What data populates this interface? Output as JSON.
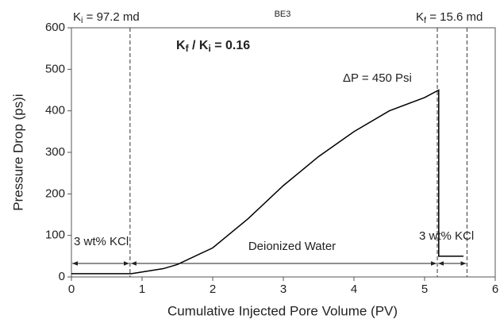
{
  "chart_data": {
    "type": "line",
    "title": "BE3",
    "x_label": "Cumulative Injected Pore Volume (PV)",
    "y_label": "Pressure Drop (ps)i",
    "xlim": [
      0,
      6
    ],
    "xticks": [
      0,
      1,
      2,
      3,
      4,
      5,
      6
    ],
    "ylim": [
      0,
      600
    ],
    "yticks": [
      0,
      100,
      200,
      300,
      400,
      500,
      600
    ],
    "grid": false,
    "series": [
      {
        "color": "#000000",
        "x": [
          0,
          0.5,
          0.85,
          1.0,
          1.3,
          1.5,
          2,
          2.5,
          3,
          3.5,
          4,
          4.5,
          5,
          5.2,
          5.2,
          5.55
        ],
        "values": [
          8,
          8,
          8,
          12,
          20,
          30,
          70,
          140,
          220,
          290,
          350,
          400,
          432,
          450,
          50,
          50
        ]
      }
    ],
    "vlines": [
      0.83,
      5.18,
      5.6
    ],
    "annotations": [
      {
        "parts": [
          {
            "t": "K"
          },
          {
            "t": "i",
            "sub": true
          },
          {
            "t": " = 97.2 md"
          }
        ]
      },
      {
        "parts": [
          {
            "t": "K"
          },
          {
            "t": "f",
            "sub": true
          },
          {
            "t": " =  15.6 md"
          }
        ]
      },
      {
        "parts": [
          {
            "t": "K"
          },
          {
            "t": "f",
            "sub": true
          },
          {
            "t": " / K"
          },
          {
            "t": "i",
            "sub": true
          },
          {
            "t": " = 0.16"
          }
        ],
        "bold": true
      },
      {
        "parts": [
          {
            "t": "ΔP = 450 Psi"
          }
        ]
      },
      {
        "parts": [
          {
            "t": "3 wt% KCl"
          }
        ]
      },
      {
        "parts": [
          {
            "t": "Deionized Water"
          }
        ]
      },
      {
        "parts": [
          {
            "t": "3 wt% KCl"
          }
        ]
      }
    ]
  }
}
